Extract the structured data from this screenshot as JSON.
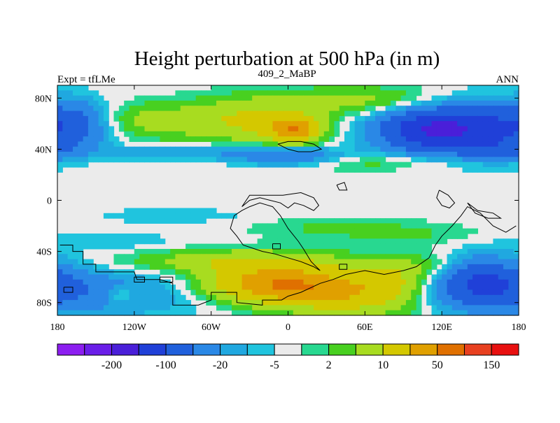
{
  "chart_data": {
    "type": "heatmap",
    "title": "Height perturbation at 500 hPa (in m)",
    "subtitle": "409_2_MaBP",
    "left_label": "Expt = tfLMe",
    "right_label": "ANN",
    "x_axis": {
      "range": [
        -180,
        180
      ],
      "ticks": [
        {
          "value": -180,
          "label": "180"
        },
        {
          "value": -120,
          "label": "120W"
        },
        {
          "value": -60,
          "label": "60W"
        },
        {
          "value": 0,
          "label": "0"
        },
        {
          "value": 60,
          "label": "60E"
        },
        {
          "value": 120,
          "label": "120E"
        },
        {
          "value": 180,
          "label": "180"
        }
      ]
    },
    "y_axis": {
      "range": [
        -90,
        90
      ],
      "ticks": [
        {
          "value": 80,
          "label": "80N"
        },
        {
          "value": 40,
          "label": "40N"
        },
        {
          "value": 0,
          "label": "0"
        },
        {
          "value": -40,
          "label": "40S"
        },
        {
          "value": -80,
          "label": "80S"
        }
      ]
    },
    "colorbar": {
      "colors": [
        "#8c1ef0",
        "#6a1ee8",
        "#4a1fd9",
        "#2040d8",
        "#2060dc",
        "#2a88e6",
        "#20a8e0",
        "#20c4de",
        "#ebebeb",
        "#28d890",
        "#48d020",
        "#a8dc20",
        "#d4c800",
        "#e0a000",
        "#e07000",
        "#e84020",
        "#e81010"
      ],
      "labels": [
        {
          "after_bin": 1,
          "text": "-200"
        },
        {
          "after_bin": 3,
          "text": "-100"
        },
        {
          "after_bin": 5,
          "text": "-20"
        },
        {
          "after_bin": 7,
          "text": "-5"
        },
        {
          "after_bin": 9,
          "text": "2"
        },
        {
          "after_bin": 11,
          "text": "10"
        },
        {
          "after_bin": 13,
          "text": "50"
        },
        {
          "after_bin": 15,
          "text": "150"
        }
      ]
    },
    "field_features": [
      {
        "lon": -165,
        "lat": 60,
        "value": -15,
        "sx": 16,
        "sy": 13
      },
      {
        "lon": -110,
        "lat": 62,
        "value": 12,
        "sx": 28,
        "sy": 10
      },
      {
        "lon": -30,
        "lat": 62,
        "value": 22,
        "sx": 36,
        "sy": 12
      },
      {
        "lon": 5,
        "lat": 55,
        "value": 40,
        "sx": 14,
        "sy": 7
      },
      {
        "lon": 70,
        "lat": 78,
        "value": 14,
        "sx": 55,
        "sy": 8
      },
      {
        "lon": 140,
        "lat": 56,
        "value": -45,
        "sx": 40,
        "sy": 15
      },
      {
        "lon": 100,
        "lat": 55,
        "value": -20,
        "sx": 25,
        "sy": 12
      },
      {
        "lon": -70,
        "lat": 38,
        "value": -10,
        "sx": 50,
        "sy": 4
      },
      {
        "lon": 0,
        "lat": 34,
        "value": -20,
        "sx": 30,
        "sy": 5
      },
      {
        "lon": 80,
        "lat": 30,
        "value": 9,
        "sx": 60,
        "sy": 5
      },
      {
        "lon": 165,
        "lat": 38,
        "value": -12,
        "sx": 18,
        "sy": 5
      },
      {
        "lon": -40,
        "lat": -48,
        "value": 18,
        "sx": 60,
        "sy": 7
      },
      {
        "lon": 40,
        "lat": -22,
        "value": 6,
        "sx": 50,
        "sy": 6
      },
      {
        "lon": -140,
        "lat": -32,
        "value": -5,
        "sx": 40,
        "sy": 5
      },
      {
        "lon": -90,
        "lat": -12,
        "value": -5,
        "sx": 40,
        "sy": 4
      },
      {
        "lon": 110,
        "lat": -28,
        "value": 4,
        "sx": 40,
        "sy": 6
      },
      {
        "lon": -150,
        "lat": -72,
        "value": -12,
        "sx": 30,
        "sy": 12
      },
      {
        "lon": -130,
        "lat": -74,
        "value": 12,
        "sx": 8,
        "sy": 5
      },
      {
        "lon": -90,
        "lat": -70,
        "value": -8,
        "sx": 35,
        "sy": 14
      },
      {
        "lon": -10,
        "lat": -66,
        "value": 45,
        "sx": 40,
        "sy": 10
      },
      {
        "lon": 50,
        "lat": -74,
        "value": 25,
        "sx": 40,
        "sy": 12
      },
      {
        "lon": 85,
        "lat": -58,
        "value": 15,
        "sx": 20,
        "sy": 10
      },
      {
        "lon": 150,
        "lat": -66,
        "value": -40,
        "sx": 30,
        "sy": 14
      },
      {
        "lon": 118,
        "lat": -52,
        "value": 10,
        "sx": 14,
        "sy": 8
      }
    ]
  }
}
